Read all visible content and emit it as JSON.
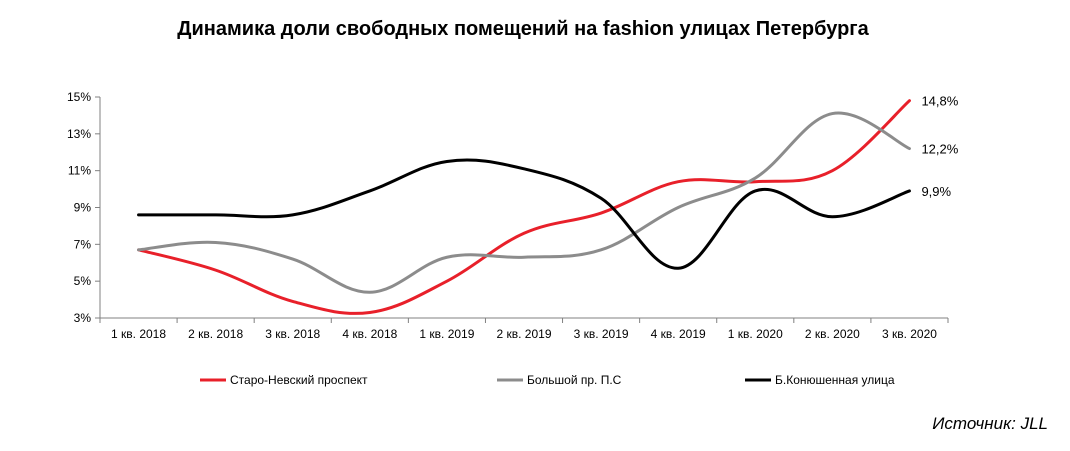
{
  "chart_data": {
    "type": "line",
    "title": "Динамика доли свободных помещений на fashion улицах Петербурга",
    "categories": [
      "1 кв. 2018",
      "2 кв. 2018",
      "3 кв. 2018",
      "4 кв. 2018",
      "1 кв. 2019",
      "2 кв. 2019",
      "3 кв. 2019",
      "4 кв. 2019",
      "1 кв. 2020",
      "2 кв. 2020",
      "3 кв. 2020"
    ],
    "yticks": [
      3,
      5,
      7,
      9,
      11,
      13,
      15
    ],
    "ytick_labels": [
      "3%",
      "5%",
      "7%",
      "9%",
      "11%",
      "13%",
      "15%"
    ],
    "ylim": [
      3,
      15
    ],
    "series": [
      {
        "name": "Старо-Невский проспект",
        "color": "#e8202a",
        "values": [
          6.7,
          5.6,
          3.9,
          3.3,
          5.0,
          7.6,
          8.7,
          10.4,
          10.4,
          11.0,
          14.8
        ],
        "end_label": "14,8%"
      },
      {
        "name": "Большой пр. П.С",
        "color": "#8c8c8c",
        "values": [
          6.7,
          7.1,
          6.2,
          4.4,
          6.3,
          6.3,
          6.7,
          9.0,
          10.6,
          14.1,
          12.2
        ],
        "end_label": "12,2%"
      },
      {
        "name": "Б.Конюшенная улица",
        "color": "#000000",
        "values": [
          8.6,
          8.6,
          8.6,
          9.9,
          11.5,
          11.1,
          9.5,
          5.7,
          9.9,
          8.5,
          9.9
        ],
        "end_label": "9,9%"
      }
    ],
    "legend_position": "bottom"
  },
  "source": "Источник: JLL"
}
